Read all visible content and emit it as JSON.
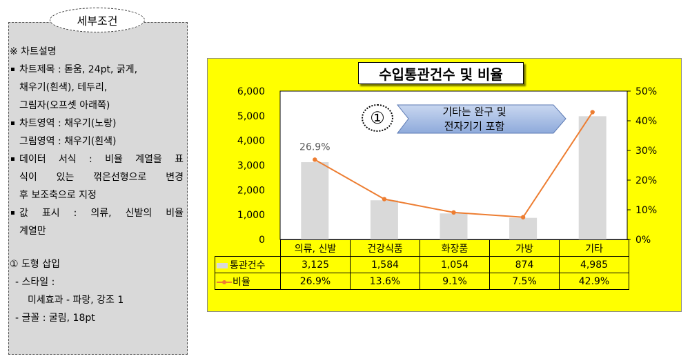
{
  "panel": {
    "title": "세부조건",
    "lines": [
      "※ 차트설명",
      "차트제목 : 돋움, 24pt, 굵게,",
      "채우기(흰색), 테두리,",
      "그림자(오프셋 아래쪽)",
      "차트영역 : 채우기(노랑)",
      "그림영역 : 채우기(흰색)",
      "데이터 서식 : 비율 계열을 표",
      "식이 있는 꺾은선형으로 변경",
      "후 보조축으로 지정",
      "값 표시 : 의류, 신발의 비율",
      "계열만",
      "① 도형 삽입",
      "- 스타일 :",
      "미세효과 - 파랑, 강조 1",
      "- 글꼴 : 굴림, 18pt"
    ]
  },
  "shape": {
    "number": "①",
    "line1": "기타는 완구 및",
    "line2": "전자기기 포함"
  },
  "chart_data": {
    "type": "bar",
    "title": "수입통관건수 및 비율",
    "categories": [
      "의류, 신발",
      "건강식품",
      "화장품",
      "가방",
      "기타"
    ],
    "series": [
      {
        "name": "통관건수",
        "type": "bar",
        "axis": "primary",
        "color": "#d9d9d9",
        "values": [
          3125,
          1584,
          1054,
          874,
          4985
        ],
        "labels": [
          "3,125",
          "1,584",
          "1,054",
          "874",
          "4,985"
        ]
      },
      {
        "name": "비율",
        "type": "line",
        "axis": "secondary",
        "color": "#ed7d31",
        "values": [
          26.9,
          13.6,
          9.1,
          7.5,
          42.9
        ],
        "labels": [
          "26.9%",
          "13.6%",
          "9.1%",
          "7.5%",
          "42.9%"
        ]
      }
    ],
    "data_label": "26.9%",
    "ylim": [
      0,
      6000
    ],
    "y_ticks": [
      "6,000",
      "5,000",
      "4,000",
      "3,000",
      "2,000",
      "1,000",
      "0"
    ],
    "y2lim": [
      0,
      50
    ],
    "y2_ticks": [
      "50%",
      "40%",
      "30%",
      "20%",
      "10%",
      "0%"
    ],
    "grid": false,
    "legend": "data-table",
    "plot_background": "#ffffff",
    "chart_background": "#ffff00"
  }
}
